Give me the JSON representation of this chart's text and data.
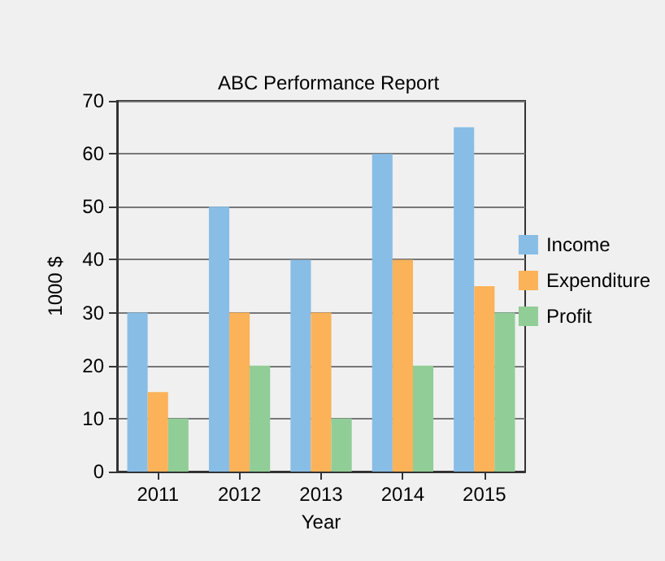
{
  "chart_data": {
    "type": "bar",
    "title": "ABC Performance Report",
    "xlabel": "Year",
    "ylabel": "1000 $",
    "categories": [
      "2011",
      "2012",
      "2013",
      "2014",
      "2015"
    ],
    "series": [
      {
        "name": "Income",
        "color": "#88bde6",
        "values": [
          30,
          50,
          40,
          60,
          65
        ]
      },
      {
        "name": "Expenditure",
        "color": "#fbb258",
        "values": [
          15,
          30,
          30,
          40,
          35
        ]
      },
      {
        "name": "Profit",
        "color": "#90cd97",
        "values": [
          10,
          20,
          10,
          20,
          30
        ]
      }
    ],
    "ylim": [
      0,
      70
    ],
    "yticks": [
      0,
      10,
      20,
      30,
      40,
      50,
      60,
      70
    ],
    "grid": "y",
    "legend": "right"
  }
}
